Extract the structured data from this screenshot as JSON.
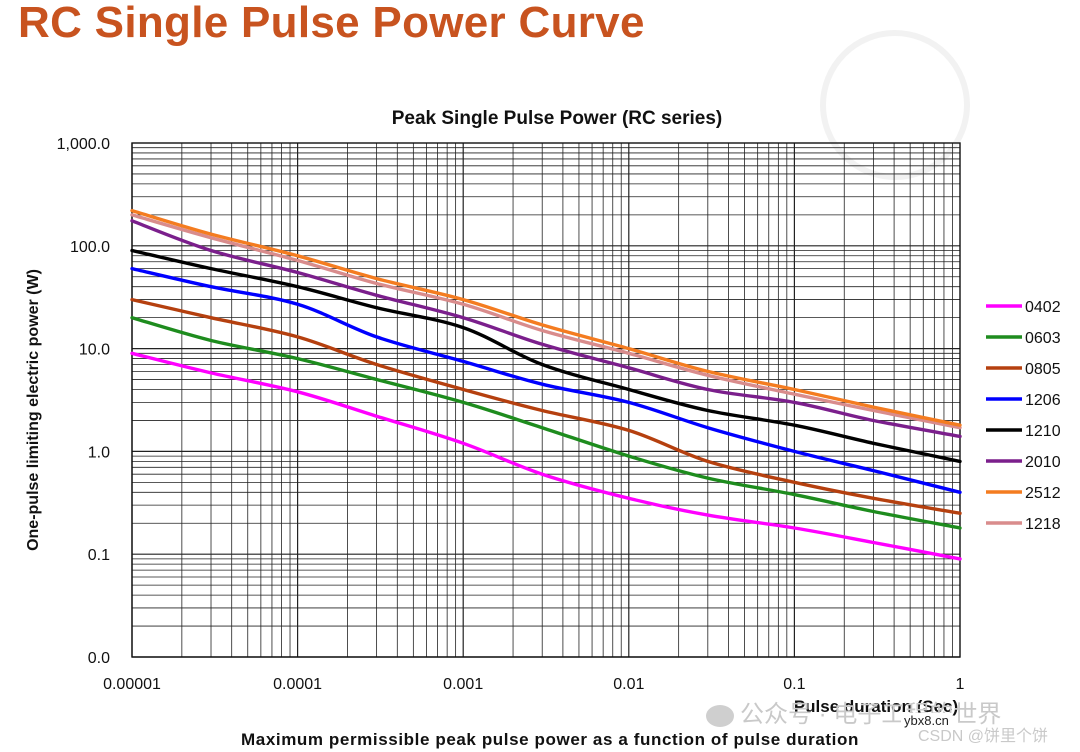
{
  "slide_title": "RC Single Pulse Power Curve",
  "caption": "Maximum permissible peak pulse power as a function of pulse duration",
  "watermark": {
    "text": "公众号 · 电子工程的世界",
    "csdn": "CSDN @饼里个饼",
    "site_badge": "ybx8.cn"
  },
  "chart_data": {
    "type": "line",
    "title": "Peak Single Pulse Power (RC series)",
    "xlabel": "Pulse duration (Sec)",
    "ylabel": "One-pulse limiting electric power (W)",
    "x_scale": "log",
    "y_scale": "log",
    "xlim": [
      1e-05,
      1
    ],
    "ylim": [
      0.01,
      1000
    ],
    "x_ticks": [
      1e-05,
      0.0001,
      0.001,
      0.01,
      0.1,
      1
    ],
    "x_tick_labels": [
      "0.00001",
      "0.0001",
      "0.001",
      "0.01",
      "0.1",
      "1"
    ],
    "y_ticks": [
      0.01,
      0.1,
      1,
      10,
      100,
      1000
    ],
    "y_tick_labels": [
      "0.0",
      "0.1",
      "1.0",
      "10.0",
      "100.0",
      "1,000.0"
    ],
    "grid": true,
    "legend_position": "right",
    "x": [
      1e-05,
      3e-05,
      0.0001,
      0.0003,
      0.001,
      0.003,
      0.01,
      0.03,
      0.1,
      0.3,
      1
    ],
    "series": [
      {
        "name": "0402",
        "color": "#ff00ff",
        "values": [
          9,
          5.8,
          3.8,
          2.2,
          1.2,
          0.6,
          0.35,
          0.24,
          0.18,
          0.13,
          0.09
        ]
      },
      {
        "name": "0603",
        "color": "#1e8c1e",
        "values": [
          20,
          12,
          8,
          5,
          3,
          1.7,
          0.9,
          0.55,
          0.38,
          0.26,
          0.18
        ]
      },
      {
        "name": "0805",
        "color": "#b5400f",
        "values": [
          30,
          20,
          13,
          7,
          4,
          2.5,
          1.6,
          0.8,
          0.5,
          0.35,
          0.25
        ]
      },
      {
        "name": "1206",
        "color": "#0000ff",
        "values": [
          60,
          40,
          27,
          13,
          7.5,
          4.5,
          3,
          1.7,
          1,
          0.65,
          0.4
        ]
      },
      {
        "name": "1210",
        "color": "#000000",
        "values": [
          90,
          60,
          40,
          25,
          16,
          7,
          4,
          2.5,
          1.8,
          1.2,
          0.8
        ]
      },
      {
        "name": "2010",
        "color": "#7b1f8c",
        "values": [
          175,
          90,
          55,
          33,
          20,
          11,
          6.5,
          4,
          3,
          2,
          1.4
        ]
      },
      {
        "name": "2512",
        "color": "#f47c20",
        "values": [
          220,
          130,
          80,
          48,
          30,
          17,
          10,
          6,
          4,
          2.7,
          1.8
        ]
      },
      {
        "name": "1218",
        "color": "#d98c8c",
        "values": [
          200,
          120,
          72,
          43,
          27,
          15,
          9,
          5.5,
          3.6,
          2.5,
          1.7
        ]
      }
    ]
  }
}
